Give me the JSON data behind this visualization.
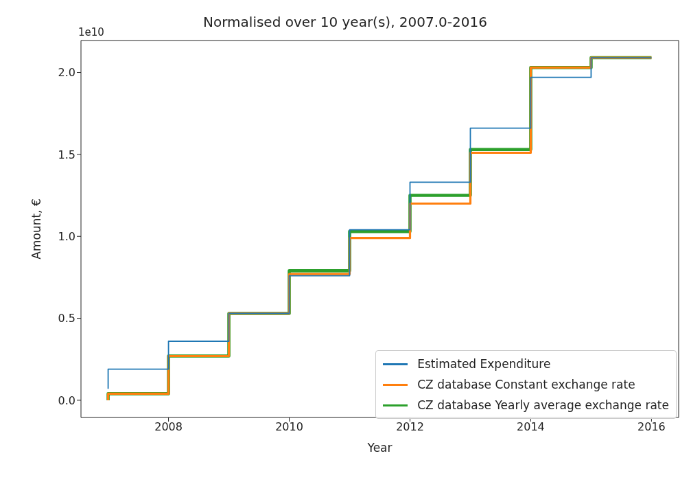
{
  "chart_data": {
    "type": "step",
    "title": "Normalised over 10 year(s), 2007.0-2016",
    "xlabel": "Year",
    "ylabel": "Amount, €",
    "annotations": [
      "1e10"
    ],
    "x": [
      2007,
      2008,
      2009,
      2010,
      2011,
      2012,
      2013,
      2014,
      2015,
      2016
    ],
    "series": [
      {
        "name": "Estimated Expenditure",
        "color": "#1f77b4",
        "values": [
          0.07,
          0.19,
          0.36,
          0.53,
          0.76,
          1.04,
          1.33,
          1.66,
          1.97,
          2.09
        ]
      },
      {
        "name": "CZ database Constant exchange rate",
        "color": "#ff7f0e",
        "values": [
          0.0,
          0.04,
          0.27,
          0.53,
          0.77,
          0.99,
          1.2,
          1.51,
          2.03,
          2.09
        ]
      },
      {
        "name": "CZ database Yearly average exchange rate",
        "color": "#2ca02c",
        "values": [
          0.0,
          0.04,
          0.27,
          0.53,
          0.79,
          1.03,
          1.25,
          1.53,
          2.03,
          2.09
        ]
      }
    ],
    "xlim": [
      2006.55,
      2016.45
    ],
    "xticks": [
      2008,
      2010,
      2012,
      2014,
      2016
    ],
    "ylim": [
      -0.105,
      2.195
    ],
    "yticks": [
      {
        "value": 0,
        "label": "0.0"
      },
      0.5,
      {
        "value": 1,
        "label": "1.0"
      },
      1.5,
      {
        "value": 2,
        "label": "2.0"
      }
    ],
    "grid": false,
    "legend": "bottom right",
    "line_style": "solid",
    "marker": "none"
  }
}
